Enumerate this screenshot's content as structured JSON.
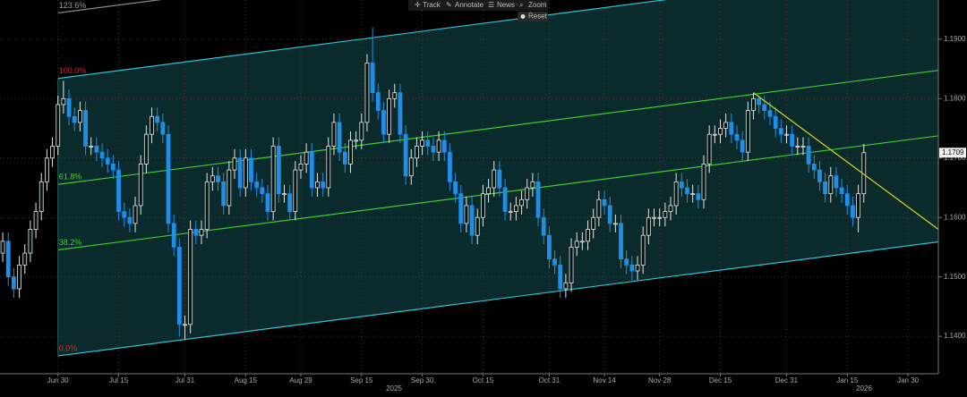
{
  "toolbar": [
    "Track",
    "Annotate",
    "News",
    "Zoom",
    "Reset"
  ],
  "chart_data": {
    "type": "candlestick",
    "categories": [
      null,
      null,
      null,
      null,
      null,
      null,
      null,
      null,
      null,
      null,
      "Jun 30",
      null,
      null,
      null,
      null,
      null,
      null,
      null,
      null,
      null,
      null,
      "Jul 15",
      null,
      null,
      null,
      null,
      null,
      null,
      null,
      null,
      null,
      null,
      null,
      "Jul 31",
      null,
      null,
      null,
      null,
      null,
      null,
      null,
      null,
      null,
      null,
      "Aug 15",
      null,
      null,
      null,
      null,
      null,
      null,
      null,
      null,
      null,
      "Aug 29",
      null,
      null,
      null,
      null,
      null,
      null,
      null,
      null,
      null,
      null,
      "Sep 15",
      null,
      null,
      null,
      null,
      null,
      null,
      null,
      null,
      null,
      null,
      "Sep 30",
      null,
      null,
      null,
      null,
      null,
      null,
      null,
      null,
      null,
      null,
      "Oct 15",
      null,
      null,
      null,
      null,
      null,
      null,
      null,
      null,
      null,
      null,
      null,
      "Oct 31",
      null,
      null,
      null,
      null,
      null,
      null,
      null,
      null,
      null,
      "Nov 14",
      null,
      null,
      null,
      null,
      null,
      null,
      null,
      null,
      null,
      "Nov 28",
      null,
      null,
      null,
      null,
      null,
      null,
      null,
      null,
      null,
      null,
      "Dec 15",
      null,
      null,
      null,
      null,
      null,
      null,
      null,
      null,
      null,
      null,
      null,
      "Dec 31",
      null,
      null,
      null,
      null,
      null,
      null,
      null,
      null,
      null,
      null,
      "Jan 15",
      null,
      null,
      null,
      null,
      null,
      null,
      null,
      null,
      null,
      null,
      "Jan 30",
      null,
      null,
      null,
      null,
      null
    ],
    "years": [
      "2025",
      "2026"
    ],
    "open": [
      1.154,
      1.156,
      1.15,
      1.148,
      1.152,
      1.154,
      1.158,
      1.161,
      1.166,
      1.17,
      1.172,
      1.179,
      1.18,
      1.177,
      1.176,
      1.178,
      1.172,
      1.172,
      1.171,
      1.17,
      1.169,
      1.168,
      1.161,
      1.16,
      1.159,
      1.162,
      1.169,
      1.174,
      1.177,
      1.176,
      1.174,
      1.159,
      1.155,
      1.142,
      1.142,
      1.158,
      1.157,
      1.158,
      1.166,
      1.167,
      1.166,
      1.162,
      1.168,
      1.17,
      1.165,
      1.17,
      1.166,
      1.165,
      1.164,
      1.161,
      1.172,
      1.164,
      1.164,
      1.161,
      1.168,
      1.169,
      1.171,
      1.165,
      1.166,
      1.165,
      1.172,
      1.176,
      1.171,
      1.169,
      1.173,
      1.173,
      1.176,
      1.186,
      1.181,
      1.178,
      1.174,
      1.18,
      1.181,
      1.174,
      1.167,
      1.17,
      1.172,
      1.173,
      1.172,
      1.171,
      1.173,
      1.171,
      1.166,
      1.164,
      1.159,
      1.162,
      1.157,
      1.16,
      1.164,
      1.165,
      1.168,
      1.165,
      1.161,
      1.161,
      1.162,
      1.163,
      1.165,
      1.166,
      1.16,
      1.157,
      1.153,
      1.152,
      1.148,
      1.149,
      1.155,
      1.156,
      1.156,
      1.158,
      1.16,
      1.163,
      1.162,
      1.159,
      1.159,
      1.153,
      1.152,
      1.151,
      1.152,
      1.157,
      1.16,
      1.16,
      1.16,
      1.161,
      1.162,
      1.166,
      1.165,
      1.164,
      1.164,
      1.163,
      1.169,
      1.174,
      1.174,
      1.175,
      1.176,
      1.174,
      1.173,
      1.171,
      1.178,
      1.18,
      1.179,
      1.178,
      1.177,
      1.175,
      1.174,
      1.174,
      1.172,
      1.172,
      1.172,
      1.169,
      1.168,
      1.166,
      1.164,
      1.167,
      1.165,
      1.164,
      1.162,
      1.16,
      1.164,
      null,
      null,
      null,
      null,
      null,
      null,
      null,
      null,
      null,
      null,
      null,
      null,
      null
    ],
    "high": [
      1.1575,
      1.1575,
      1.1515,
      1.1535,
      1.1555,
      1.1595,
      1.1625,
      1.1675,
      1.1715,
      1.1735,
      1.1805,
      1.183,
      1.1815,
      1.1785,
      1.1795,
      1.1795,
      1.1735,
      1.1735,
      1.1725,
      1.1715,
      1.1705,
      1.1695,
      1.1625,
      1.1615,
      1.1635,
      1.1705,
      1.1755,
      1.1785,
      1.1785,
      1.1775,
      1.1755,
      1.1605,
      1.1565,
      1.1435,
      1.1595,
      1.1595,
      1.1595,
      1.1675,
      1.1685,
      1.1685,
      1.1675,
      1.1695,
      1.1715,
      1.1715,
      1.1715,
      1.1715,
      1.1675,
      1.1665,
      1.1655,
      1.1735,
      1.1735,
      1.1655,
      1.1655,
      1.1695,
      1.1705,
      1.1725,
      1.1725,
      1.1675,
      1.1675,
      1.1735,
      1.1775,
      1.1775,
      1.1725,
      1.1745,
      1.1745,
      1.1775,
      1.1875,
      1.192,
      1.1825,
      1.1795,
      1.1815,
      1.1825,
      1.1825,
      1.1755,
      1.1715,
      1.1735,
      1.1745,
      1.1745,
      1.1735,
      1.1745,
      1.1745,
      1.1725,
      1.1675,
      1.1655,
      1.1635,
      1.1635,
      1.1615,
      1.1655,
      1.1665,
      1.1695,
      1.1695,
      1.1665,
      1.1625,
      1.1635,
      1.1645,
      1.1665,
      1.1675,
      1.1675,
      1.1615,
      1.1585,
      1.1545,
      1.1535,
      1.1505,
      1.1565,
      1.1575,
      1.1575,
      1.1595,
      1.1615,
      1.1645,
      1.1645,
      1.1635,
      1.1605,
      1.1605,
      1.1545,
      1.1535,
      1.1535,
      1.1585,
      1.1615,
      1.1615,
      1.1615,
      1.1625,
      1.1635,
      1.1675,
      1.1675,
      1.1665,
      1.1655,
      1.1655,
      1.1705,
      1.1755,
      1.1755,
      1.1765,
      1.1775,
      1.1775,
      1.1755,
      1.1745,
      1.1795,
      1.181,
      1.1805,
      1.1805,
      1.1795,
      1.1785,
      1.1765,
      1.1755,
      1.1755,
      1.1735,
      1.1735,
      1.1735,
      1.1705,
      1.1695,
      1.1675,
      1.1685,
      1.1685,
      1.1665,
      1.1655,
      1.1635,
      1.1655,
      1.1724,
      null,
      null,
      null,
      null,
      null,
      null,
      null,
      null,
      null,
      null,
      null,
      null,
      null
    ],
    "low": [
      1.1525,
      1.1485,
      1.1465,
      1.1465,
      1.1505,
      1.1525,
      1.1565,
      1.1595,
      1.1645,
      1.1685,
      1.1705,
      1.1775,
      1.1755,
      1.1745,
      1.1745,
      1.1705,
      1.1705,
      1.1695,
      1.1685,
      1.1675,
      1.1665,
      1.1595,
      1.1585,
      1.1575,
      1.1575,
      1.1605,
      1.1675,
      1.1725,
      1.1745,
      1.1725,
      1.1575,
      1.1535,
      1.14,
      1.1395,
      1.1405,
      1.1555,
      1.1555,
      1.1565,
      1.1645,
      1.1645,
      1.1605,
      1.1605,
      1.1665,
      1.1635,
      1.1635,
      1.1645,
      1.1635,
      1.1625,
      1.1595,
      1.1595,
      1.1625,
      1.1625,
      1.1595,
      1.1595,
      1.1665,
      1.1675,
      1.1635,
      1.1635,
      1.1635,
      1.1635,
      1.1705,
      1.1695,
      1.1675,
      1.1675,
      1.1715,
      1.1715,
      1.1745,
      1.1795,
      1.1765,
      1.1725,
      1.1725,
      1.1785,
      1.1725,
      1.1655,
      1.1655,
      1.1685,
      1.1705,
      1.1705,
      1.1695,
      1.1695,
      1.1695,
      1.1645,
      1.1625,
      1.1575,
      1.1575,
      1.1555,
      1.1555,
      1.1585,
      1.1625,
      1.1635,
      1.1635,
      1.1595,
      1.1595,
      1.1595,
      1.1605,
      1.1615,
      1.1635,
      1.1585,
      1.1555,
      1.1515,
      1.1505,
      1.1465,
      1.1465,
      1.1475,
      1.1535,
      1.1545,
      1.1545,
      1.1565,
      1.1585,
      1.1605,
      1.1575,
      1.1575,
      1.1515,
      1.1505,
      1.1495,
      1.1495,
      1.1505,
      1.1555,
      1.1585,
      1.1585,
      1.1585,
      1.1595,
      1.1605,
      1.1635,
      1.1625,
      1.1625,
      1.1615,
      1.1615,
      1.1675,
      1.1725,
      1.1725,
      1.1735,
      1.1725,
      1.1715,
      1.1695,
      1.1695,
      1.1765,
      1.1775,
      1.1765,
      1.1755,
      1.1735,
      1.1725,
      1.1725,
      1.1705,
      1.1705,
      1.1705,
      1.1675,
      1.1665,
      1.1645,
      1.1625,
      1.1625,
      1.1635,
      1.1625,
      1.1605,
      1.1585,
      1.1575,
      1.1625,
      null,
      null,
      null,
      null,
      null,
      null,
      null,
      null,
      null,
      null,
      null,
      null,
      null
    ],
    "close": [
      1.156,
      1.15,
      1.148,
      1.152,
      1.154,
      1.158,
      1.161,
      1.166,
      1.17,
      1.172,
      1.179,
      1.18,
      1.177,
      1.176,
      1.178,
      1.172,
      1.172,
      1.171,
      1.17,
      1.169,
      1.168,
      1.161,
      1.16,
      1.159,
      1.162,
      1.169,
      1.174,
      1.177,
      1.176,
      1.174,
      1.159,
      1.155,
      1.142,
      1.142,
      1.158,
      1.157,
      1.158,
      1.166,
      1.167,
      1.166,
      1.162,
      1.168,
      1.17,
      1.165,
      1.17,
      1.166,
      1.165,
      1.164,
      1.161,
      1.172,
      1.164,
      1.164,
      1.161,
      1.168,
      1.169,
      1.171,
      1.165,
      1.166,
      1.165,
      1.172,
      1.176,
      1.171,
      1.169,
      1.173,
      1.173,
      1.176,
      1.186,
      1.181,
      1.178,
      1.174,
      1.18,
      1.181,
      1.174,
      1.167,
      1.17,
      1.172,
      1.173,
      1.172,
      1.171,
      1.173,
      1.171,
      1.166,
      1.164,
      1.159,
      1.162,
      1.157,
      1.16,
      1.164,
      1.165,
      1.168,
      1.165,
      1.161,
      1.161,
      1.162,
      1.163,
      1.165,
      1.166,
      1.16,
      1.157,
      1.153,
      1.152,
      1.148,
      1.149,
      1.155,
      1.156,
      1.156,
      1.158,
      1.16,
      1.163,
      1.162,
      1.159,
      1.159,
      1.153,
      1.152,
      1.151,
      1.152,
      1.157,
      1.16,
      1.16,
      1.16,
      1.161,
      1.162,
      1.166,
      1.165,
      1.164,
      1.164,
      1.163,
      1.169,
      1.174,
      1.174,
      1.175,
      1.176,
      1.174,
      1.173,
      1.171,
      1.178,
      1.18,
      1.179,
      1.178,
      1.177,
      1.175,
      1.174,
      1.174,
      1.172,
      1.172,
      1.172,
      1.169,
      1.168,
      1.166,
      1.164,
      1.167,
      1.165,
      1.164,
      1.162,
      1.16,
      1.164,
      1.1709,
      null,
      null,
      null,
      null,
      null,
      null,
      null,
      null,
      null,
      null,
      null,
      null,
      null
    ],
    "up_color": "#e6e6e6",
    "down_color": "#1e8fe8",
    "ylim": [
      1.1337,
      1.1966
    ],
    "yticks": [
      {
        "value": 1.14,
        "label": "1.1400"
      },
      {
        "value": 1.15,
        "label": "1.1500"
      },
      {
        "value": 1.16,
        "label": "1.1600"
      },
      {
        "value": 1.17,
        "label": "1.1700"
      },
      {
        "value": 1.18,
        "label": "1.1800"
      },
      {
        "value": 1.19,
        "label": "1.1900"
      }
    ],
    "grid": true,
    "axis_side": "right",
    "fib_channel": {
      "start": "Jun 30",
      "base": [
        1.1367,
        1.1559
      ],
      "top": [
        1.1834,
        1.2026
      ],
      "fill": "#0a2a2c",
      "levels": [
        {
          "value": 0,
          "label": "0.0%",
          "line_color": "#2ec4d6",
          "label_color": "#d0302a"
        },
        {
          "value": 38.2,
          "label": "38.2%",
          "line_color": "#3ccf2e",
          "label_color": "#3ccf2e"
        },
        {
          "value": 61.8,
          "label": "61.8%",
          "line_color": "#3ccf2e",
          "label_color": "#3ccf2e"
        },
        {
          "value": 100,
          "label": "100.0%",
          "line_color": "#2ec4d6",
          "label_color": "#d0302a"
        },
        {
          "value": 123.6,
          "label": "123.6%",
          "line_color": "#8a8a8a",
          "label_color": "#9a9a9a"
        }
      ]
    },
    "trendline": {
      "after": "Dec 15",
      "end": 1.158,
      "color": "#c9cc28"
    }
  }
}
